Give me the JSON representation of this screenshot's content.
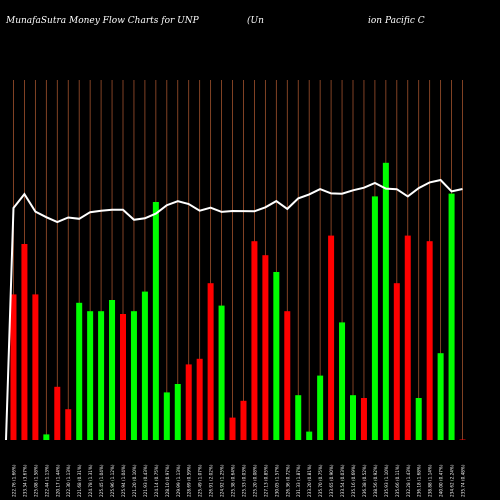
{
  "title": {
    "left": "MunafaSutra  Money Flow  Charts for UNP",
    "middle": "(Un",
    "right": "ion  Pacific C"
  },
  "colors": {
    "background": "#000000",
    "up": "#00ff00",
    "down": "#ff0000",
    "grid": "#a0522d",
    "line": "#ffffff",
    "label": "#ffffff"
  },
  "chart_data": {
    "type": "bar",
    "description_series": [
      "money flow bars",
      "price line"
    ],
    "categories": [
      "222.76 (1.66%)",
      "233.34 (3.67%)",
      "225.08 (1.58%)",
      "222.44 (1.13%)",
      "220.17 (1.44%)",
      "222.30 (1.13%)",
      "221.68 (0.31%)",
      "224.78 (1.31%)",
      "225.45 (1.04%)",
      "225.96 (1.12%)",
      "225.94 (1.04%)",
      "221.20 (0.10%)",
      "221.93 (0.43%)",
      "224.14 (0.75%)",
      "228.10 (0.97%)",
      "229.99 (1.13%)",
      "228.69 (0.59%)",
      "225.49 (1.07%)",
      "226.91 (2.02%)",
      "224.92 (1.25%)",
      "225.38 (0.64%)",
      "225.33 (0.03%)",
      "225.20 (0.08%)",
      "227.13 (0.85%)",
      "230.05 (1.57%)",
      "226.36 (0.72%)",
      "231.33 (1.87%)",
      "233.20 (0.81%)",
      "235.70 (0.75%)",
      "233.65 (0.90%)",
      "233.54 (0.03%)",
      "235.16 (0.69%)",
      "236.38 (0.52%)",
      "238.56 (0.92%)",
      "235.93 (1.10%)",
      "235.66 (0.11%)",
      "232.28 (1.43%)",
      "236.18 (1.68%)",
      "238.88 (1.14%)",
      "240.00 (0.47%)",
      "234.62 (2.24%)",
      "235.74 (0.48%)"
    ],
    "flow": [
      "down",
      "down",
      "down",
      "up",
      "down",
      "down",
      "up",
      "up",
      "up",
      "up",
      "down",
      "up",
      "up",
      "up",
      "up",
      "up",
      "down",
      "down",
      "down",
      "up",
      "down",
      "down",
      "down",
      "down",
      "up",
      "down",
      "up",
      "up",
      "up",
      "down",
      "up",
      "up",
      "down",
      "up",
      "up",
      "down",
      "down",
      "up",
      "down",
      "up",
      "up",
      "down"
    ],
    "values": [
      52,
      70,
      52,
      2,
      19,
      11,
      49,
      46,
      46,
      50,
      45,
      46,
      53,
      85,
      17,
      20,
      27,
      29,
      56,
      48,
      8,
      14,
      71,
      66,
      60,
      46,
      16,
      3,
      23,
      73,
      42,
      16,
      15,
      87,
      99,
      56,
      73,
      15,
      71,
      31,
      88,
      0
    ],
    "price": [
      222.76,
      233.34,
      225.08,
      222.44,
      220.17,
      222.3,
      221.68,
      224.78,
      225.45,
      225.96,
      225.94,
      221.2,
      221.93,
      224.14,
      228.1,
      229.99,
      228.69,
      225.49,
      226.91,
      224.92,
      225.38,
      225.33,
      225.2,
      227.13,
      230.05,
      226.36,
      231.33,
      233.2,
      235.7,
      233.65,
      233.54,
      235.16,
      236.38,
      238.56,
      235.93,
      235.66,
      232.28,
      236.18,
      238.88,
      240.0,
      234.62,
      235.74
    ],
    "ylim": [
      0,
      100
    ],
    "grid": true
  }
}
